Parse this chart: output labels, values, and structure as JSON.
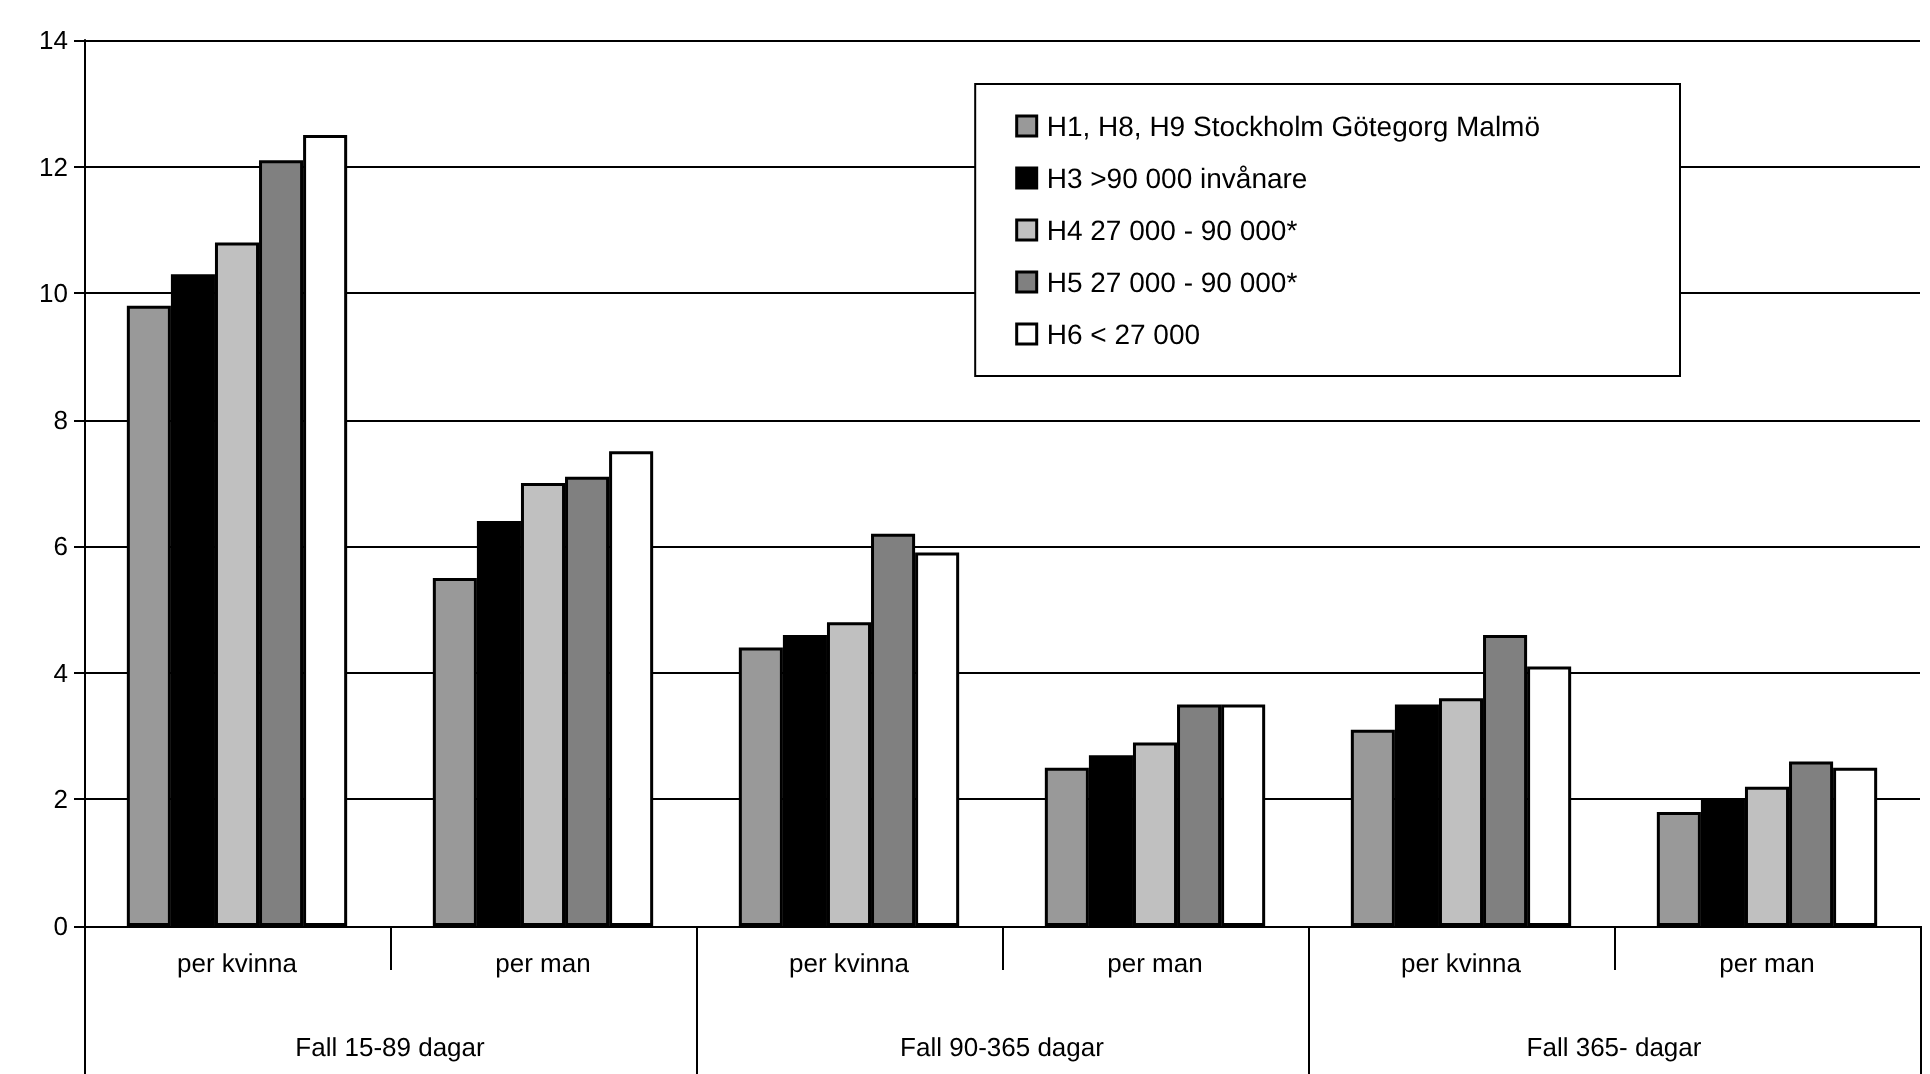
{
  "chart_data": {
    "type": "bar",
    "categories": [
      "per kvinna",
      "per man",
      "per kvinna",
      "per man",
      "per kvinna",
      "per man"
    ],
    "annotations": [
      "Fall 15-89 dagar",
      "Fall 90-365 dagar",
      "Fall 365- dagar"
    ],
    "series": [
      {
        "name": "H1, H8, H9 Stockholm Götegorg Malmö",
        "color": "#999999",
        "values": [
          9.8,
          5.5,
          4.4,
          2.5,
          3.1,
          1.8
        ]
      },
      {
        "name": "H3 >90 000 invånare",
        "color": "#000000",
        "values": [
          10.3,
          6.4,
          4.6,
          2.7,
          3.5,
          2.0
        ]
      },
      {
        "name": "H4 27 000 - 90 000*",
        "color": "#c0c0c0",
        "values": [
          10.8,
          7.0,
          4.8,
          2.9,
          3.6,
          2.2
        ]
      },
      {
        "name": "H5 27 000 - 90 000*",
        "color": "#808080",
        "values": [
          12.1,
          7.1,
          6.2,
          3.5,
          4.6,
          2.6
        ]
      },
      {
        "name": "H6 < 27 000",
        "color": "#ffffff",
        "values": [
          12.5,
          7.5,
          5.9,
          3.5,
          4.1,
          2.5
        ]
      }
    ],
    "ylim": [
      0,
      14
    ],
    "yticks": [
      0,
      2,
      4,
      6,
      8,
      10,
      12,
      14
    ],
    "grid": "y",
    "legend": "top right"
  }
}
